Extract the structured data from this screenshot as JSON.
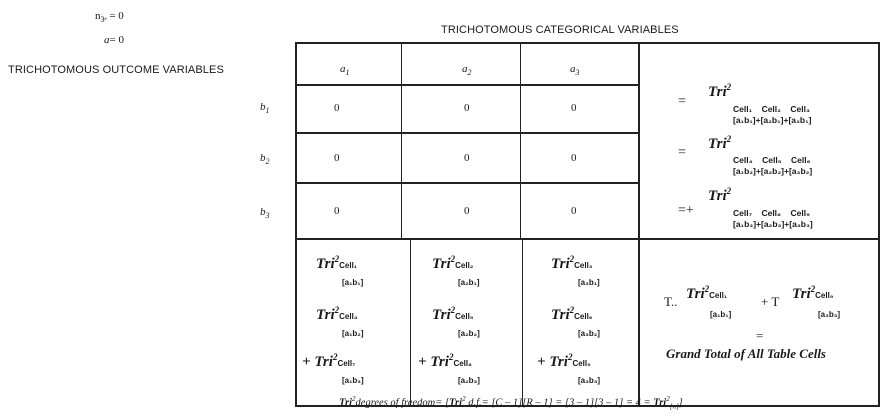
{
  "top": {
    "n_eq": "n",
    "n_sub": "3ᵉ",
    "n_val": "= 0",
    "a_eq": "a",
    "a_val": "= 0"
  },
  "headers": {
    "categorical": "TRICHOTOMOUS CATEGORICAL VARIABLES",
    "outcome": "TRICHOTOMOUS OUTCOME VARIABLES"
  },
  "columns": [
    {
      "sym": "a",
      "sub": "1"
    },
    {
      "sym": "a",
      "sub": "2"
    },
    {
      "sym": "a",
      "sub": "3"
    }
  ],
  "rows": [
    {
      "sym": "b",
      "sub": "1",
      "values": [
        "0",
        "0",
        "0"
      ]
    },
    {
      "sym": "b",
      "sub": "2",
      "values": [
        "0",
        "0",
        "0"
      ]
    },
    {
      "sym": "b",
      "sub": "3",
      "values": [
        "0",
        "0",
        "0"
      ]
    }
  ],
  "right_panel": {
    "rows": [
      {
        "op": "=",
        "tri": "Tri",
        "sup": "2",
        "cells": [
          "Cell₁",
          "Cell₂",
          "Cell₃"
        ],
        "pairs": [
          "[a₁b₁]",
          "[a₂b₁]",
          "[a₃b₁]"
        ]
      },
      {
        "op": "=",
        "tri": "Tri",
        "sup": "2",
        "cells": [
          "Cell₄",
          "Cell₅",
          "Cell₆"
        ],
        "pairs": [
          "[a₁b₂]",
          "[a₂b₂]",
          "[a₃b₂]"
        ]
      },
      {
        "op": "=+",
        "tri": "Tri",
        "sup": "2",
        "cells": [
          "Cell₇",
          "Cell₈",
          "Cell₉"
        ],
        "pairs": [
          "[a₁b₃]",
          "[a₂b₃]",
          "[a₃b₃]"
        ]
      }
    ],
    "plus": "+"
  },
  "bottom_cells": [
    [
      {
        "prefix": "",
        "tri": "Tri",
        "sup": "2",
        "cell": "Cell₁",
        "pair": "[a₁b₁]"
      },
      {
        "prefix": "",
        "tri": "Tri",
        "sup": "2",
        "cell": "Cell₄",
        "pair": "[a₁b₂]"
      },
      {
        "prefix": "+ ",
        "tri": "Tri",
        "sup": "2",
        "cell": "Cell₇",
        "pair": "[a₁b₃]"
      }
    ],
    [
      {
        "prefix": "",
        "tri": "Tri",
        "sup": "2",
        "cell": "Cell₂",
        "pair": "[a₂b₁]"
      },
      {
        "prefix": "",
        "tri": "Tri",
        "sup": "2",
        "cell": "Cell₅",
        "pair": "[a₂b₂]"
      },
      {
        "prefix": "+ ",
        "tri": "Tri",
        "sup": "2",
        "cell": "Cell₈",
        "pair": "[a₂b₃]"
      }
    ],
    [
      {
        "prefix": "",
        "tri": "Tri",
        "sup": "2",
        "cell": "Cell₃",
        "pair": "[a₃b₁]"
      },
      {
        "prefix": "",
        "tri": "Tri",
        "sup": "2",
        "cell": "Cell₆",
        "pair": "[a₃b₂]"
      },
      {
        "prefix": "+ ",
        "tri": "Tri",
        "sup": "2",
        "cell": "Cell₉",
        "pair": "[a₃b₃]"
      }
    ]
  ],
  "grand_total": {
    "t1": "T..",
    "tri1": "Tri",
    "sup1": "2",
    "cell1": "Cell₁",
    "pair1": "[a₁b₁]",
    "plus": "+ T",
    "tri2": "Tri",
    "sup2": "2",
    "cell2": "Cell₉",
    "pair2": "[a₃b₃]",
    "eq": "=",
    "label": "Grand Total of All Table Cells"
  },
  "footer": {
    "tri": "Tri",
    "sup": "2",
    "text1": "degrees of freedom= [",
    "tri_b": "Tri",
    "sup_b": "2",
    "text2": " d.f.= [C – 1][R – 1] = [3 – 1][3 – 1] = 4 = ",
    "tri_c": "Tri",
    "sup_c": "2",
    "sub_c": "[n]",
    "text3": "]"
  }
}
